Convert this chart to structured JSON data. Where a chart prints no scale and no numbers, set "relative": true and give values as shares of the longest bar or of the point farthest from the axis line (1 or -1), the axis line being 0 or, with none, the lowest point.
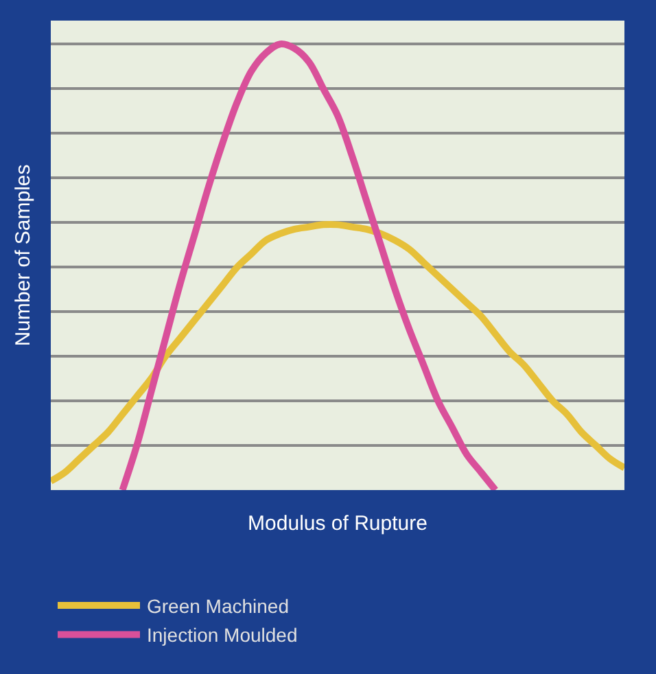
{
  "chart_data": {
    "type": "line",
    "relative": true,
    "xlabel": "Modulus of Rupture",
    "ylabel": "Number of Samples",
    "grid": "y",
    "legend": "bottom",
    "marker": "none",
    "line_style": "solid",
    "categories": [
      null,
      null,
      null,
      null,
      null,
      null,
      null,
      null,
      null,
      null,
      null,
      null,
      null,
      null,
      null,
      null,
      null,
      null,
      null,
      null,
      null,
      null,
      null,
      null,
      null,
      null,
      null,
      null,
      null,
      null,
      null,
      null,
      null,
      null,
      null,
      null,
      null,
      null,
      null,
      null,
      null
    ],
    "series": [
      {
        "name": "Green Machined",
        "color": "#e6c03a",
        "values": [
          0.02,
          0.04,
          0.07,
          0.1,
          0.13,
          0.17,
          0.21,
          0.25,
          0.3,
          0.34,
          0.38,
          0.42,
          0.46,
          0.5,
          0.53,
          0.56,
          0.575,
          0.585,
          0.59,
          0.595,
          0.595,
          0.59,
          0.585,
          0.575,
          0.56,
          0.54,
          0.51,
          0.48,
          0.45,
          0.42,
          0.39,
          0.35,
          0.31,
          0.28,
          0.24,
          0.2,
          0.17,
          0.13,
          0.1,
          0.07,
          0.05
        ]
      },
      {
        "name": "Injection Moulded",
        "color": "#d9509a",
        "values": [
          null,
          null,
          null,
          null,
          null,
          0,
          0.1,
          0.22,
          0.34,
          0.46,
          0.57,
          0.68,
          0.78,
          0.87,
          0.94,
          0.98,
          1.0,
          0.99,
          0.96,
          0.9,
          0.84,
          0.75,
          0.65,
          0.55,
          0.45,
          0.36,
          0.28,
          0.2,
          0.14,
          0.08,
          0.04,
          0,
          null,
          null,
          null,
          null,
          null,
          null,
          null,
          null,
          null
        ]
      }
    ]
  }
}
